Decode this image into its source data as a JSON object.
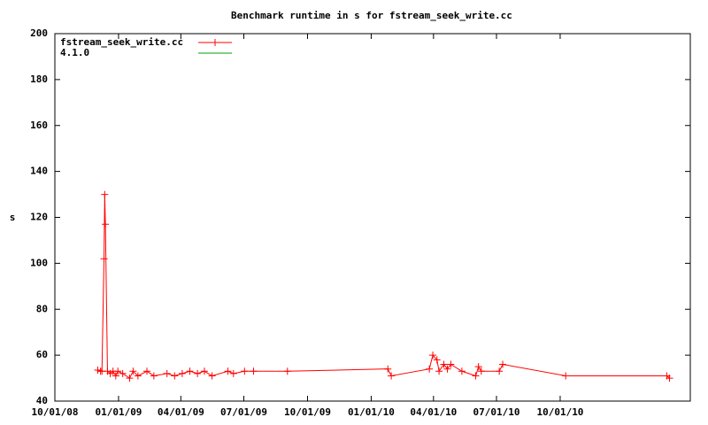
{
  "chart_data": {
    "type": "line",
    "title": "Benchmark runtime in s for fstream_seek_write.cc",
    "y_label": "s",
    "xlim": [
      "2008-10-01",
      "2011-04-07"
    ],
    "xticks": [
      {
        "value": "2008-10-01",
        "label": "10/01/08"
      },
      {
        "value": "2009-01-01",
        "label": "01/01/09"
      },
      {
        "value": "2009-04-01",
        "label": "04/01/09"
      },
      {
        "value": "2009-07-01",
        "label": "07/01/09"
      },
      {
        "value": "2009-10-01",
        "label": "10/01/09"
      },
      {
        "value": "2010-01-01",
        "label": "01/01/10"
      },
      {
        "value": "2010-04-01",
        "label": "04/01/10"
      },
      {
        "value": "2010-07-01",
        "label": "07/01/10"
      },
      {
        "value": "2010-10-01",
        "label": "10/01/10"
      }
    ],
    "ylim": [
      40,
      200
    ],
    "yticks": [
      40,
      60,
      80,
      100,
      120,
      140,
      160,
      180,
      200
    ],
    "grid": false,
    "legend": "top-left",
    "series": [
      {
        "name": "fstream_seek_write.cc",
        "color": "#ff0000",
        "x": [
          "2008-12-02",
          "2008-12-06",
          "2008-12-08",
          "2008-12-11",
          "2008-12-12",
          "2008-12-13",
          "2008-12-16",
          "2008-12-20",
          "2008-12-24",
          "2008-12-28",
          "2008-12-31",
          "2009-01-07",
          "2009-01-17",
          "2009-01-22",
          "2009-01-29",
          "2009-02-11",
          "2009-02-21",
          "2009-03-12",
          "2009-03-23",
          "2009-04-03",
          "2009-04-14",
          "2009-04-25",
          "2009-05-05",
          "2009-05-16",
          "2009-06-08",
          "2009-06-16",
          "2009-07-02",
          "2009-07-15",
          "2009-09-02",
          "2010-01-25",
          "2010-01-30",
          "2010-03-26",
          "2010-03-31",
          "2010-04-06",
          "2010-04-09",
          "2010-04-16",
          "2010-04-21",
          "2010-04-26",
          "2010-05-12",
          "2010-06-01",
          "2010-06-05",
          "2010-06-09",
          "2010-07-05",
          "2010-07-10",
          "2010-10-09",
          "2011-03-04",
          "2011-03-08"
        ],
        "values": [
          53.5,
          53,
          53,
          102,
          130,
          117,
          53,
          52,
          53,
          51,
          53,
          52,
          50,
          53,
          51,
          53,
          51,
          52,
          51,
          52,
          53,
          52,
          53,
          51,
          53,
          52,
          53,
          53,
          53,
          54,
          51,
          54,
          60,
          58,
          53,
          56,
          54,
          56,
          53,
          51,
          55,
          53,
          53,
          56,
          51,
          51,
          50
        ]
      },
      {
        "name": "4.1.0",
        "color": "#00a000",
        "x": [],
        "values": []
      }
    ]
  }
}
